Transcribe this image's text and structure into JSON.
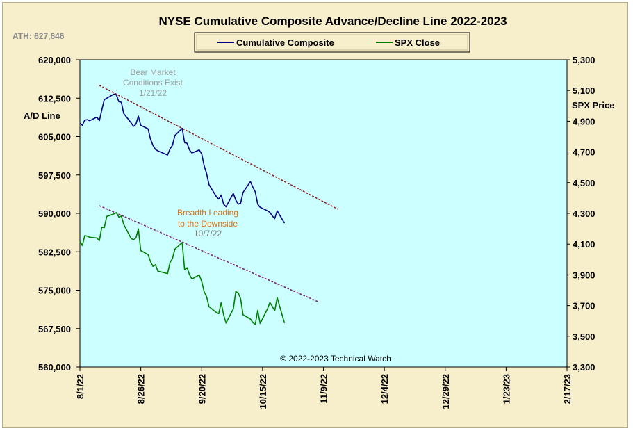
{
  "chart_data": {
    "type": "line",
    "title": "NYSE Cumulative  Composite Advance/Decline  Line  2022-2023",
    "ath_label": "ATH: 627,646",
    "left_axis_label": "A/D Line",
    "right_axis_label": "SPX Price",
    "copyright": "© 2022-2023  Technical Watch",
    "colors": {
      "frame_background": "#f7eecb",
      "plot_background": "#ccffff",
      "composite_line": "#000080",
      "spx_line": "#008000",
      "upper_trendline": "#8b1a1a",
      "lower_trendline": "#7a1a6a",
      "annotation_bear": "#a0a0a0",
      "annotation_breadth": "#e07010",
      "annotation_date": "#808080"
    },
    "xlim": [
      "2022-08-01",
      "2023-02-17"
    ],
    "x_ticks": [
      "8/1/22",
      "8/26/22",
      "9/20/22",
      "10/15/22",
      "11/9/22",
      "12/4/22",
      "12/29/22",
      "1/23/23",
      "2/17/23"
    ],
    "left_ylim": [
      560000,
      620000
    ],
    "left_y_ticks": [
      "620,000",
      "612,500",
      "605,000",
      "597,500",
      "590,000",
      "582,500",
      "575,000",
      "567,500",
      "560,000"
    ],
    "right_ylim": [
      3300,
      5300
    ],
    "right_y_ticks": [
      "5,300",
      "5,100",
      "4,900",
      "4,700",
      "4,500",
      "4,300",
      "4,100",
      "3,900",
      "3,700",
      "3,500",
      "3,300"
    ],
    "legend": {
      "placement": "top-center",
      "entries": [
        "Cumulative Composite",
        "SPX Close"
      ]
    },
    "series": [
      {
        "name": "Cumulative Composite",
        "axis": "left",
        "points": [
          [
            "2022-08-01",
            607600
          ],
          [
            "2022-08-02",
            607200
          ],
          [
            "2022-08-03",
            608200
          ],
          [
            "2022-08-04",
            608300
          ],
          [
            "2022-08-05",
            608100
          ],
          [
            "2022-08-08",
            608800
          ],
          [
            "2022-08-09",
            608100
          ],
          [
            "2022-08-10",
            610200
          ],
          [
            "2022-08-11",
            612200
          ],
          [
            "2022-08-12",
            612500
          ],
          [
            "2022-08-15",
            613300
          ],
          [
            "2022-08-16",
            613100
          ],
          [
            "2022-08-17",
            611800
          ],
          [
            "2022-08-18",
            611700
          ],
          [
            "2022-08-19",
            609500
          ],
          [
            "2022-08-22",
            607700
          ],
          [
            "2022-08-23",
            607000
          ],
          [
            "2022-08-24",
            607400
          ],
          [
            "2022-08-25",
            609000
          ],
          [
            "2022-08-26",
            607200
          ],
          [
            "2022-08-29",
            606500
          ],
          [
            "2022-08-30",
            604500
          ],
          [
            "2022-08-31",
            603300
          ],
          [
            "2022-09-01",
            602500
          ],
          [
            "2022-09-02",
            602200
          ],
          [
            "2022-09-06",
            601400
          ],
          [
            "2022-09-07",
            602600
          ],
          [
            "2022-09-08",
            603300
          ],
          [
            "2022-09-09",
            605200
          ],
          [
            "2022-09-12",
            606600
          ],
          [
            "2022-09-13",
            603800
          ],
          [
            "2022-09-14",
            603700
          ],
          [
            "2022-09-15",
            602400
          ],
          [
            "2022-09-16",
            601800
          ],
          [
            "2022-09-19",
            602400
          ],
          [
            "2022-09-20",
            601600
          ],
          [
            "2022-09-21",
            599300
          ],
          [
            "2022-09-22",
            597800
          ],
          [
            "2022-09-23",
            595600
          ],
          [
            "2022-09-26",
            593300
          ],
          [
            "2022-09-27",
            592800
          ],
          [
            "2022-09-28",
            593600
          ],
          [
            "2022-09-29",
            591800
          ],
          [
            "2022-09-30",
            591300
          ],
          [
            "2022-10-03",
            593900
          ],
          [
            "2022-10-04",
            592600
          ],
          [
            "2022-10-05",
            591800
          ],
          [
            "2022-10-06",
            592000
          ],
          [
            "2022-10-07",
            594100
          ],
          [
            "2022-10-10",
            596200
          ],
          [
            "2022-10-11",
            595100
          ],
          [
            "2022-10-12",
            594200
          ],
          [
            "2022-10-13",
            591800
          ],
          [
            "2022-10-14",
            591200
          ],
          [
            "2022-10-17",
            590500
          ],
          [
            "2022-10-18",
            590200
          ],
          [
            "2022-10-19",
            589500
          ],
          [
            "2022-10-20",
            589000
          ],
          [
            "2022-10-21",
            590500
          ],
          [
            "2022-10-24",
            588100
          ]
        ]
      },
      {
        "name": "SPX Close",
        "axis": "right",
        "points": [
          [
            "2022-08-01",
            4118
          ],
          [
            "2022-08-02",
            4091
          ],
          [
            "2022-08-03",
            4155
          ],
          [
            "2022-08-04",
            4152
          ],
          [
            "2022-08-05",
            4145
          ],
          [
            "2022-08-08",
            4140
          ],
          [
            "2022-08-09",
            4122
          ],
          [
            "2022-08-10",
            4210
          ],
          [
            "2022-08-11",
            4207
          ],
          [
            "2022-08-12",
            4280
          ],
          [
            "2022-08-15",
            4297
          ],
          [
            "2022-08-16",
            4305
          ],
          [
            "2022-08-17",
            4275
          ],
          [
            "2022-08-18",
            4283
          ],
          [
            "2022-08-19",
            4228
          ],
          [
            "2022-08-22",
            4137
          ],
          [
            "2022-08-23",
            4128
          ],
          [
            "2022-08-24",
            4140
          ],
          [
            "2022-08-25",
            4199
          ],
          [
            "2022-08-26",
            4058
          ],
          [
            "2022-08-29",
            4031
          ],
          [
            "2022-08-30",
            3986
          ],
          [
            "2022-08-31",
            3955
          ],
          [
            "2022-09-01",
            3966
          ],
          [
            "2022-09-02",
            3924
          ],
          [
            "2022-09-06",
            3908
          ],
          [
            "2022-09-07",
            3980
          ],
          [
            "2022-09-08",
            4006
          ],
          [
            "2022-09-09",
            4067
          ],
          [
            "2022-09-12",
            4110
          ],
          [
            "2022-09-13",
            3932
          ],
          [
            "2022-09-14",
            3946
          ],
          [
            "2022-09-15",
            3901
          ],
          [
            "2022-09-16",
            3873
          ],
          [
            "2022-09-19",
            3900
          ],
          [
            "2022-09-20",
            3856
          ],
          [
            "2022-09-21",
            3790
          ],
          [
            "2022-09-22",
            3758
          ],
          [
            "2022-09-23",
            3693
          ],
          [
            "2022-09-26",
            3655
          ],
          [
            "2022-09-27",
            3647
          ],
          [
            "2022-09-28",
            3719
          ],
          [
            "2022-09-29",
            3640
          ],
          [
            "2022-09-30",
            3586
          ],
          [
            "2022-10-03",
            3678
          ],
          [
            "2022-10-04",
            3791
          ],
          [
            "2022-10-05",
            3783
          ],
          [
            "2022-10-06",
            3744
          ],
          [
            "2022-10-07",
            3640
          ],
          [
            "2022-10-10",
            3612
          ],
          [
            "2022-10-11",
            3589
          ],
          [
            "2022-10-12",
            3577
          ],
          [
            "2022-10-13",
            3669
          ],
          [
            "2022-10-14",
            3583
          ],
          [
            "2022-10-17",
            3678
          ],
          [
            "2022-10-18",
            3720
          ],
          [
            "2022-10-19",
            3695
          ],
          [
            "2022-10-20",
            3666
          ],
          [
            "2022-10-21",
            3752
          ],
          [
            "2022-10-24",
            3586
          ]
        ]
      }
    ],
    "trendlines": [
      {
        "name": "upper",
        "axis": "left",
        "from": [
          "2022-08-09",
          615000
        ],
        "to": [
          "2022-11-15",
          590800
        ]
      },
      {
        "name": "lower",
        "axis": "left",
        "from": [
          "2022-08-09",
          591500
        ],
        "to": [
          "2022-11-07",
          572700
        ]
      }
    ],
    "annotations": {
      "bear": [
        "Bear Market",
        "Conditions  Exist",
        "1/21/22"
      ],
      "breadth": [
        "Breadth Leading",
        "to the Downside",
        "10/7/22"
      ]
    }
  }
}
